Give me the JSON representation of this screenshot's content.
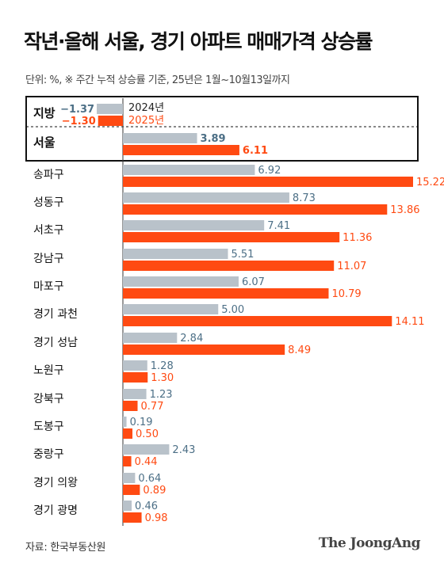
{
  "title": "작년·올해 서울, 경기 아파트 매매가격 상승률",
  "subtitle": "단위: %, ※ 주간 누적 상승률 기준, 25년은 1월~10월13일까지",
  "source": "자료: 한국부동산원",
  "brand": "The JoongAng",
  "colors": {
    "y2024": "#b9c2ca",
    "y2024_text": "#4c6f86",
    "y2025": "#ff4a12",
    "y2025_text": "#ff4a12"
  },
  "chart_data": {
    "type": "bar",
    "orientation": "horizontal",
    "series_labels": [
      "2024년",
      "2025년"
    ],
    "categories": [
      "지방",
      "서울",
      "송파구",
      "성동구",
      "서초구",
      "강남구",
      "마포구",
      "경기 과천",
      "경기 성남",
      "노원구",
      "강북구",
      "도봉구",
      "중랑구",
      "경기 의왕",
      "경기 광명"
    ],
    "value_labels": {
      "y2024": [
        "−1.37",
        "3.89",
        "6.92",
        "8.73",
        "7.41",
        "5.51",
        "6.07",
        "5.00",
        "2.84",
        "1.28",
        "1.23",
        "0.19",
        "2.43",
        "0.64",
        "0.46"
      ],
      "y2025": [
        "−1.30",
        "6.11",
        "15.22",
        "13.86",
        "11.36",
        "11.07",
        "10.79",
        "14.11",
        "8.49",
        "1.30",
        "0.77",
        "0.50",
        "0.44",
        "0.89",
        "0.98"
      ]
    },
    "series": [
      {
        "key": "y2024",
        "values": [
          -1.37,
          3.89,
          6.92,
          8.73,
          7.41,
          5.51,
          6.07,
          5.0,
          2.84,
          1.28,
          1.23,
          0.19,
          2.43,
          0.64,
          0.46
        ]
      },
      {
        "key": "y2025",
        "values": [
          -1.3,
          6.11,
          15.22,
          13.86,
          11.36,
          11.07,
          10.79,
          14.11,
          8.49,
          1.3,
          0.77,
          0.5,
          0.44,
          0.89,
          0.98
        ]
      }
    ],
    "xlim": [
      -1.37,
      15.22
    ],
    "highlighted_categories": [
      "지방",
      "서울"
    ]
  }
}
